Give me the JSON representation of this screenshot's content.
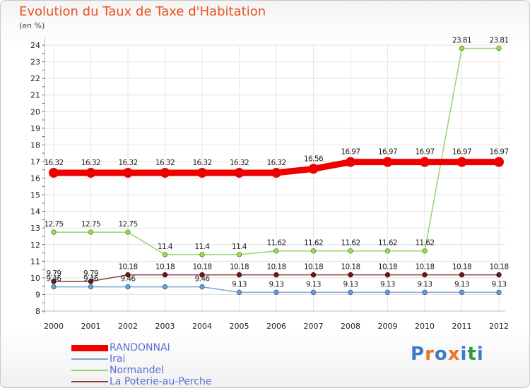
{
  "title": "Evolution du Taux de Taxe d'Habitation",
  "unit": "(en %)",
  "logo": {
    "text": "Proxiti",
    "colors": [
      "#3a7bc8",
      "#e8742a",
      "#3a7bc8",
      "#e8742a",
      "#3a7bc8",
      "#2a9a3a",
      "#3a7bc8"
    ]
  },
  "chart_data": {
    "type": "line",
    "title": "Evolution du Taux de Taxe d'Habitation",
    "ylabel": "(en %)",
    "xlabel": "",
    "x": [
      "2000",
      "2001",
      "2002",
      "2003",
      "2004",
      "2005",
      "2006",
      "2007",
      "2008",
      "2009",
      "2010",
      "2011",
      "2012"
    ],
    "ylim": [
      8,
      24
    ],
    "yticks": [
      "8",
      "9",
      "10",
      "11",
      "12",
      "13",
      "14",
      "15",
      "16",
      "17",
      "18",
      "19",
      "20",
      "21",
      "22",
      "23",
      "24"
    ],
    "grid": true,
    "legend_position": "bottom-left",
    "series": [
      {
        "name": "RANDONNAI",
        "color": "#ee0000",
        "width": 9,
        "marker_fill": "#ee0000",
        "marker_stroke": "#ee0000",
        "marker_r": 6.5,
        "values": [
          16.32,
          16.32,
          16.32,
          16.32,
          16.32,
          16.32,
          16.32,
          16.56,
          16.97,
          16.97,
          16.97,
          16.97,
          16.97
        ],
        "labels": [
          "16.32",
          "16.32",
          "16.32",
          "16.32",
          "16.32",
          "16.32",
          "16.32",
          "16.56",
          "16.97",
          "16.97",
          "16.97",
          "16.97",
          "16.97"
        ]
      },
      {
        "name": "Irai",
        "color": "#7fa7cc",
        "width": 1.5,
        "marker_fill": "#6a9fd4",
        "marker_stroke": "#3d6e9e",
        "marker_r": 3.2,
        "values": [
          9.46,
          9.46,
          9.46,
          9.46,
          9.46,
          9.13,
          9.13,
          9.13,
          9.13,
          9.13,
          9.13,
          9.13,
          9.13
        ],
        "labels": [
          "9.46",
          "9.46",
          "9.46",
          "",
          "9.46",
          "9.13",
          "9.13",
          "9.13",
          "9.13",
          "9.13",
          "9.13",
          "9.13",
          "9.13"
        ]
      },
      {
        "name": "Normandel",
        "color": "#9ad36a",
        "width": 1.5,
        "marker_fill": "#9be05a",
        "marker_stroke": "#5a9a2a",
        "marker_r": 3.2,
        "values": [
          12.75,
          12.75,
          12.75,
          11.4,
          11.4,
          11.4,
          11.62,
          11.62,
          11.62,
          11.62,
          11.62,
          23.81,
          23.81
        ],
        "labels": [
          "12.75",
          "12.75",
          "12.75",
          "11.4",
          "11.4",
          "11.4",
          "11.62",
          "11.62",
          "11.62",
          "11.62",
          "11.62",
          "23.81",
          "23.81"
        ]
      },
      {
        "name": "La Poterie-au-Perche",
        "color": "#8a3b3b",
        "width": 1.5,
        "marker_fill": "#6a1a1a",
        "marker_stroke": "#4a0e0e",
        "marker_r": 3.2,
        "values": [
          9.79,
          9.79,
          10.18,
          10.18,
          10.18,
          10.18,
          10.18,
          10.18,
          10.18,
          10.18,
          10.18,
          10.18,
          10.18
        ],
        "labels": [
          "9.79",
          "9.79",
          "10.18",
          "10.18",
          "10.18",
          "10.18",
          "10.18",
          "10.18",
          "10.18",
          "10.18",
          "10.18",
          "10.18",
          "10.18"
        ]
      }
    ]
  }
}
